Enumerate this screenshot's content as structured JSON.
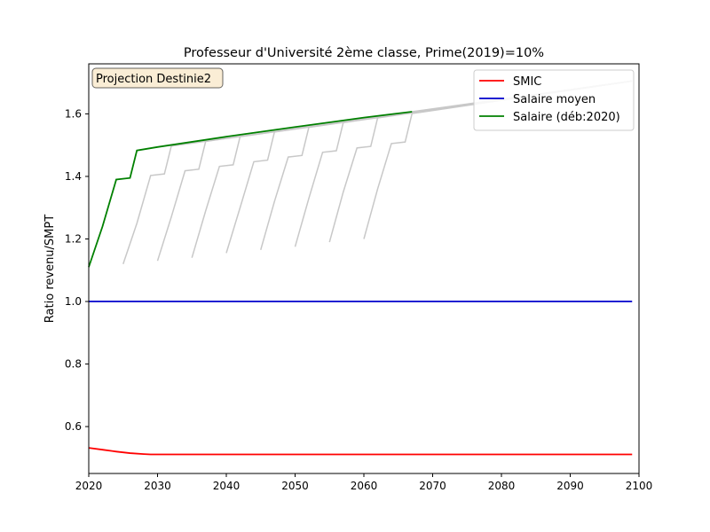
{
  "chart_data": {
    "type": "line",
    "title": "Professeur d'Université 2ème classe, Prime(2019)=10%",
    "xlabel": "",
    "ylabel": "Ratio revenu/SMPT",
    "xlim": [
      2020,
      2100
    ],
    "ylim": [
      0.45,
      1.76
    ],
    "xticks": [
      2020,
      2030,
      2040,
      2050,
      2060,
      2070,
      2080,
      2090,
      2100
    ],
    "yticks": [
      0.6,
      0.8,
      1.0,
      1.2,
      1.4,
      1.6
    ],
    "xtick_labels": [
      "2020",
      "2030",
      "2040",
      "2050",
      "2060",
      "2070",
      "2080",
      "2090",
      "2100"
    ],
    "ytick_labels": [
      "0.6",
      "0.8",
      "1.0",
      "1.2",
      "1.4",
      "1.6"
    ],
    "grid": false,
    "annotation": "Projection Destinie2",
    "legend_position": "top-right",
    "series": [
      {
        "name": "SMIC",
        "color": "#ff0000",
        "x": [
          2020,
          2022,
          2024,
          2026,
          2028,
          2029,
          2030,
          2040,
          2050,
          2060,
          2070,
          2080,
          2090,
          2099
        ],
        "y": [
          0.532,
          0.526,
          0.52,
          0.515,
          0.512,
          0.511,
          0.511,
          0.511,
          0.511,
          0.511,
          0.511,
          0.511,
          0.511,
          0.511
        ]
      },
      {
        "name": "Salaire moyen",
        "color": "#0000cc",
        "x": [
          2020,
          2099
        ],
        "y": [
          1.0,
          1.0
        ]
      },
      {
        "name": "Salaire (déb:2020)",
        "color": "#008000",
        "x": [
          2020,
          2022,
          2024,
          2026,
          2027,
          2030,
          2040,
          2050,
          2060,
          2067
        ],
        "y": [
          1.11,
          1.24,
          1.39,
          1.395,
          1.483,
          1.494,
          1.527,
          1.558,
          1.588,
          1.607
        ]
      }
    ],
    "background_series_color": "#c8c8c8",
    "background_series": [
      {
        "x": [
          2025,
          2027,
          2029,
          2031,
          2032,
          2099
        ],
        "y": [
          1.12,
          1.25,
          1.403,
          1.408,
          1.497,
          1.705
        ]
      },
      {
        "x": [
          2030,
          2032,
          2034,
          2036,
          2037,
          2099
        ],
        "y": [
          1.13,
          1.27,
          1.418,
          1.423,
          1.512,
          1.705
        ]
      },
      {
        "x": [
          2035,
          2037,
          2039,
          2041,
          2042,
          2099
        ],
        "y": [
          1.14,
          1.29,
          1.432,
          1.437,
          1.527,
          1.705
        ]
      },
      {
        "x": [
          2040,
          2042,
          2044,
          2046,
          2047,
          2099
        ],
        "y": [
          1.155,
          1.3,
          1.447,
          1.452,
          1.542,
          1.705
        ]
      },
      {
        "x": [
          2045,
          2047,
          2049,
          2051,
          2052,
          2099
        ],
        "y": [
          1.165,
          1.32,
          1.462,
          1.467,
          1.557,
          1.705
        ]
      },
      {
        "x": [
          2050,
          2052,
          2054,
          2056,
          2057,
          2099
        ],
        "y": [
          1.175,
          1.33,
          1.477,
          1.482,
          1.572,
          1.705
        ]
      },
      {
        "x": [
          2055,
          2057,
          2059,
          2061,
          2062,
          2099
        ],
        "y": [
          1.19,
          1.35,
          1.491,
          1.496,
          1.587,
          1.705
        ]
      },
      {
        "x": [
          2060,
          2062,
          2064,
          2066,
          2067,
          2099
        ],
        "y": [
          1.2,
          1.36,
          1.505,
          1.51,
          1.601,
          1.705
        ]
      },
      {
        "x": [
          2067,
          2099
        ],
        "y": [
          1.607,
          1.705
        ]
      }
    ]
  }
}
